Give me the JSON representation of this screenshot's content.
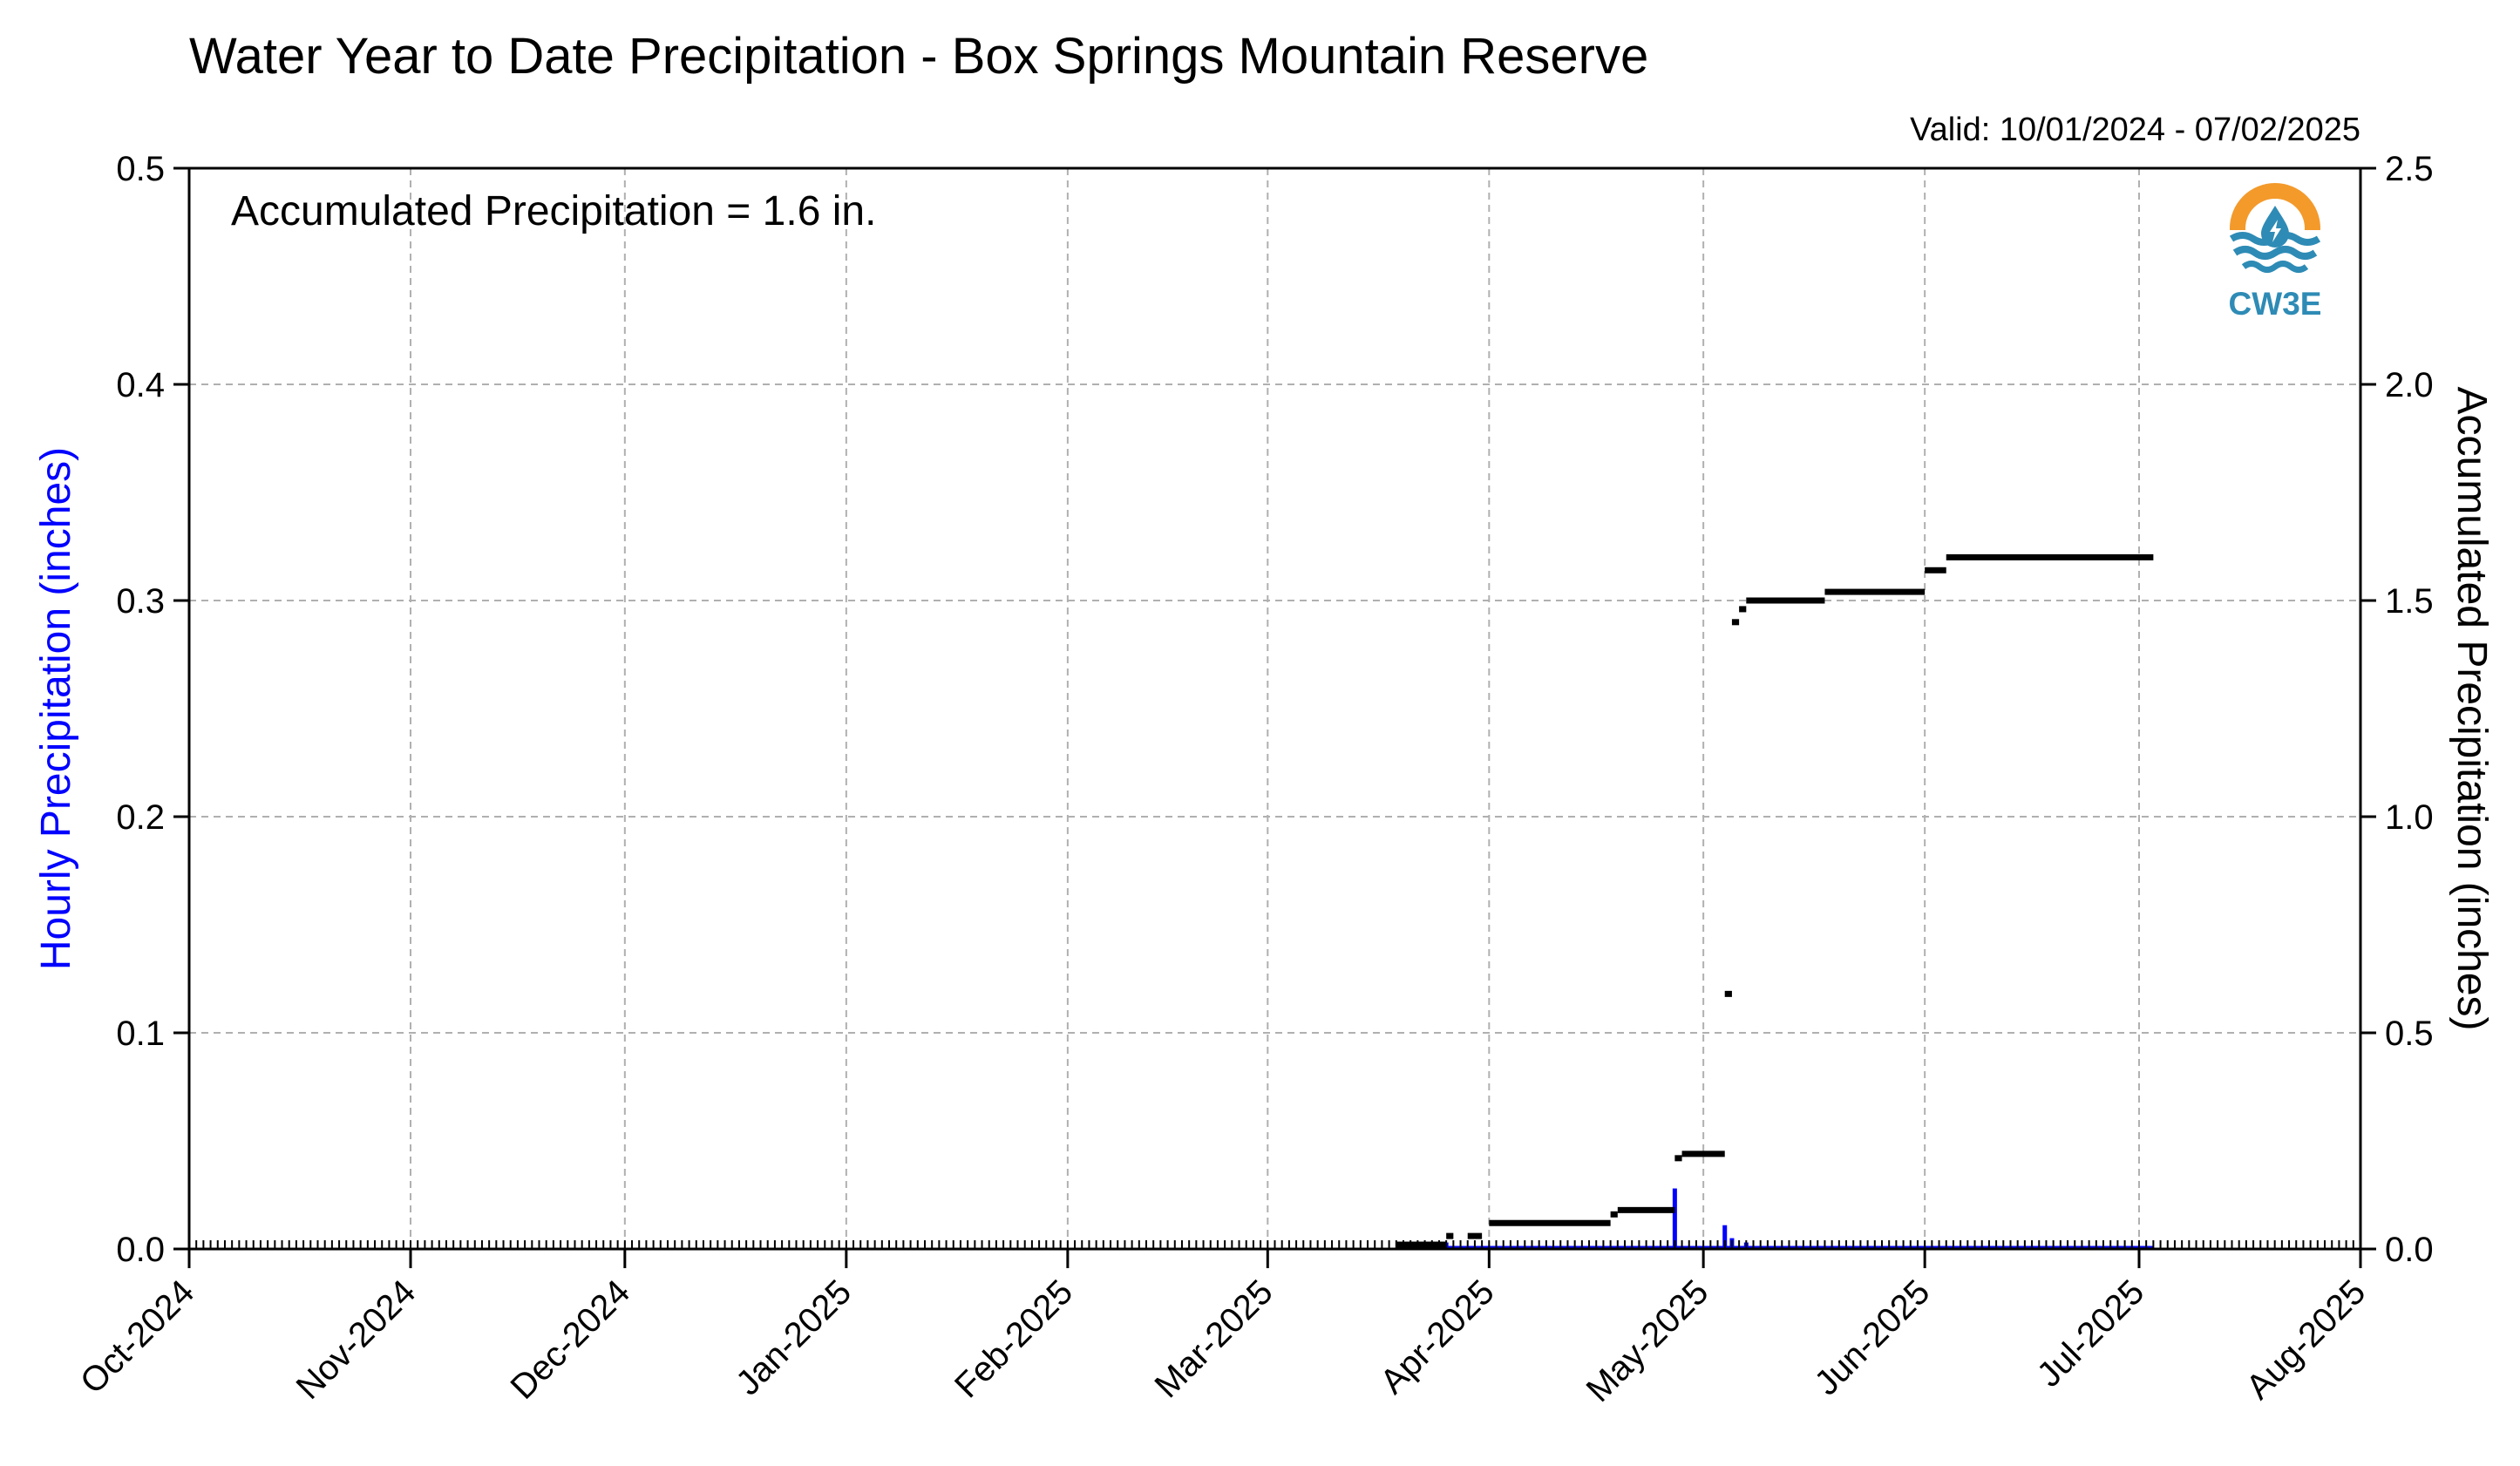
{
  "chart_data": {
    "type": "bar",
    "title": "Water Year to Date Precipitation - Box Springs Mountain Reserve",
    "valid_text": "Valid: 10/01/2024 - 07/02/2025",
    "annotation": "Accumulated Precipitation = 1.6 in.",
    "logo_text": "CW3E",
    "ylabel_left": "Hourly Precipitation (inches)",
    "ylabel_right": "Accumulated Precipitation (inches)",
    "ylim_left": [
      0,
      0.5
    ],
    "ylim_right": [
      0,
      2.5
    ],
    "yticks_left": [
      "0.0",
      "0.1",
      "0.2",
      "0.3",
      "0.4",
      "0.5"
    ],
    "yticks_right": [
      "0.0",
      "0.5",
      "1.0",
      "1.5",
      "2.0",
      "2.5"
    ],
    "x_ticks": [
      {
        "date": "2024-10-01",
        "label": "Oct-2024"
      },
      {
        "date": "2024-11-01",
        "label": "Nov-2024"
      },
      {
        "date": "2024-12-01",
        "label": "Dec-2024"
      },
      {
        "date": "2025-01-01",
        "label": "Jan-2025"
      },
      {
        "date": "2025-02-01",
        "label": "Feb-2025"
      },
      {
        "date": "2025-03-01",
        "label": "Mar-2025"
      },
      {
        "date": "2025-04-01",
        "label": "Apr-2025"
      },
      {
        "date": "2025-05-01",
        "label": "May-2025"
      },
      {
        "date": "2025-06-01",
        "label": "Jun-2025"
      },
      {
        "date": "2025-07-01",
        "label": "Jul-2025"
      },
      {
        "date": "2025-08-01",
        "label": "Aug-2025"
      }
    ],
    "xlim": [
      "2024-10-01",
      "2025-08-01"
    ],
    "grid": true,
    "colors": {
      "hourly": "#0000ff",
      "accumulated": "#000000",
      "grid": "#b0b0b0",
      "logo_orange": "#f39a2b",
      "logo_blue": "#2e8bb5"
    },
    "series": [
      {
        "name": "Hourly Precipitation (inches)",
        "axis": "left",
        "style": "bars",
        "points": [
          {
            "date": "2025-03-26",
            "value": 0.003
          },
          {
            "date": "2025-04-27",
            "value": 0.028
          },
          {
            "date": "2025-05-04",
            "value": 0.011
          },
          {
            "date": "2025-05-05",
            "value": 0.005
          },
          {
            "date": "2025-05-07",
            "value": 0.003
          }
        ],
        "baseline_range": [
          "2025-03-19",
          "2025-07-03"
        ]
      },
      {
        "name": "Accumulated Precipitation (inches)",
        "axis": "right",
        "style": "markers",
        "segments": [
          {
            "start": "2025-03-19",
            "end": "2025-03-26",
            "value": 0.01
          },
          {
            "start": "2025-03-26",
            "end": "2025-03-27",
            "value": 0.03
          },
          {
            "start": "2025-03-29",
            "end": "2025-03-31",
            "value": 0.03
          },
          {
            "start": "2025-04-01",
            "end": "2025-04-18",
            "value": 0.06
          },
          {
            "start": "2025-04-18",
            "end": "2025-04-19",
            "value": 0.08
          },
          {
            "start": "2025-04-19",
            "end": "2025-04-27",
            "value": 0.09
          },
          {
            "start": "2025-04-27",
            "end": "2025-04-28",
            "value": 0.21
          },
          {
            "start": "2025-04-28",
            "end": "2025-05-04",
            "value": 0.22
          },
          {
            "start": "2025-05-04",
            "end": "2025-05-05",
            "value": 0.59
          },
          {
            "start": "2025-05-05",
            "end": "2025-05-06",
            "value": 1.45
          },
          {
            "start": "2025-05-06",
            "end": "2025-05-07",
            "value": 1.48
          },
          {
            "start": "2025-05-07",
            "end": "2025-05-18",
            "value": 1.5
          },
          {
            "start": "2025-05-18",
            "end": "2025-06-01",
            "value": 1.52
          },
          {
            "start": "2025-06-01",
            "end": "2025-06-04",
            "value": 1.57
          },
          {
            "start": "2025-06-04",
            "end": "2025-07-03",
            "value": 1.6
          }
        ]
      }
    ]
  }
}
